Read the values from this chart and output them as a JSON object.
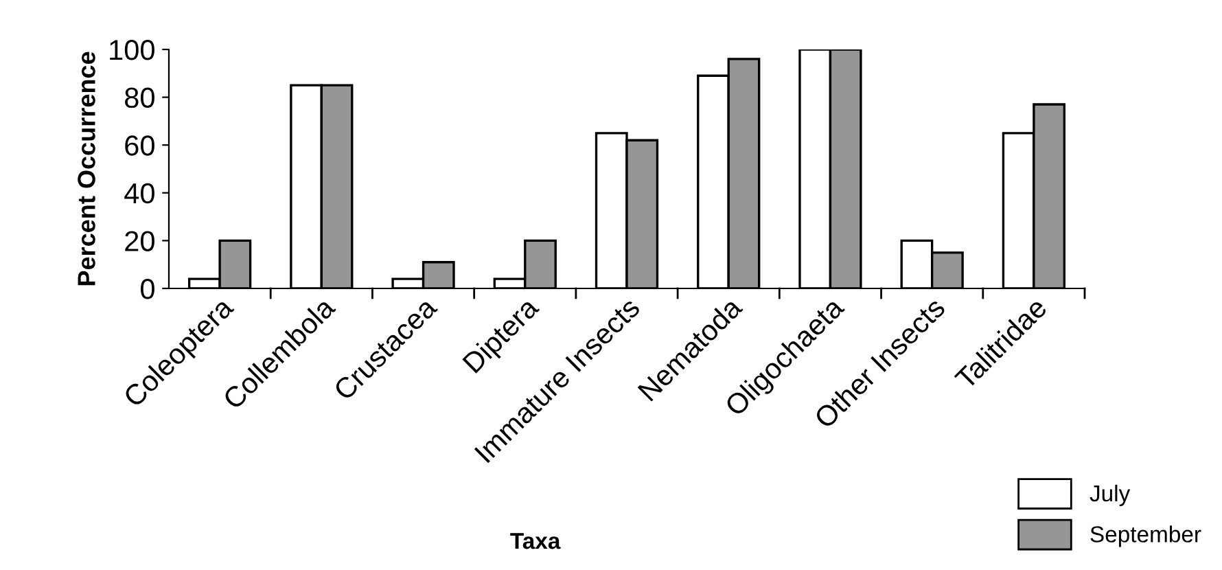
{
  "chart_data": {
    "type": "bar",
    "xlabel": "Taxa",
    "ylabel": "Percent Occurrence",
    "categories": [
      "Coleoptera",
      "Collembola",
      "Crustacea",
      "Diptera",
      "Immature Insects",
      "Nematoda",
      "Oligochaeta",
      "Other Insects",
      "Talitridae"
    ],
    "series": [
      {
        "name": "July",
        "color": "#ffffff",
        "values": [
          4,
          85,
          4,
          4,
          65,
          89,
          100,
          20,
          65
        ]
      },
      {
        "name": "September",
        "color": "#969696",
        "values": [
          20,
          85,
          11,
          20,
          62,
          96,
          100,
          15,
          77
        ]
      }
    ],
    "ylim": [
      0,
      100
    ],
    "yticks": [
      0,
      20,
      40,
      60,
      80,
      100
    ],
    "grid": false,
    "legend": "bottom right"
  }
}
